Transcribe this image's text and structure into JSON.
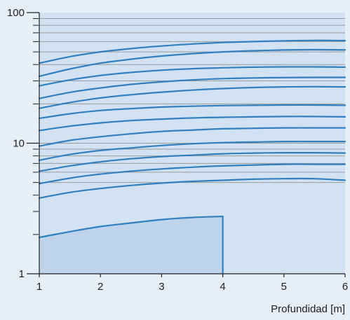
{
  "chart_data": {
    "type": "line",
    "xlabel": "Profundidad [m]",
    "ylabel": "",
    "xlim": [
      1,
      6
    ],
    "ylim": [
      1,
      100
    ],
    "y_scale": "log",
    "x_ticks": [
      {
        "value": 1,
        "label": "1"
      },
      {
        "value": 2,
        "label": "2"
      },
      {
        "value": 3,
        "label": "3"
      },
      {
        "value": 4,
        "label": "4"
      },
      {
        "value": 5,
        "label": "5"
      },
      {
        "value": 6,
        "label": "6"
      }
    ],
    "y_major_ticks": [
      {
        "value": 1,
        "label": "1"
      },
      {
        "value": 10,
        "label": "10"
      },
      {
        "value": 100,
        "label": "100"
      }
    ],
    "y_minor_ticks": [
      2,
      3,
      4,
      5,
      6,
      7,
      8,
      9,
      20,
      30,
      40,
      50,
      60,
      70,
      80,
      90
    ],
    "grid": true,
    "colors": {
      "background": "#e6eef8",
      "plot_fill": "#d3e2f2",
      "region_fill": "#bfd4ea",
      "curve": "#2f7fc1",
      "grid": "#9a9a9a",
      "axis": "#222222"
    },
    "series": [
      {
        "x": [
          1,
          1.5,
          2,
          2.5,
          3,
          3.5,
          4
        ],
        "y": [
          1.9,
          2.1,
          2.3,
          2.45,
          2.6,
          2.7,
          2.75
        ]
      },
      {
        "x": [
          1,
          1.5,
          2,
          2.5,
          3,
          3.5,
          4,
          4.5,
          5,
          5.5,
          6
        ],
        "y": [
          3.8,
          4.2,
          4.5,
          4.75,
          4.95,
          5.1,
          5.2,
          5.3,
          5.35,
          5.35,
          5.2
        ]
      },
      {
        "x": [
          1,
          1.5,
          2,
          2.5,
          3,
          3.5,
          4,
          4.5,
          5,
          5.5,
          6
        ],
        "y": [
          4.9,
          5.4,
          5.8,
          6.1,
          6.35,
          6.55,
          6.7,
          6.8,
          6.9,
          6.9,
          6.9
        ]
      },
      {
        "x": [
          1,
          1.5,
          2,
          2.5,
          3,
          3.5,
          4,
          4.5,
          5,
          5.5,
          6
        ],
        "y": [
          6.1,
          6.7,
          7.2,
          7.6,
          7.9,
          8.1,
          8.3,
          8.4,
          8.45,
          8.45,
          8.4
        ]
      },
      {
        "x": [
          1,
          1.5,
          2,
          2.5,
          3,
          3.5,
          4,
          4.5,
          5,
          5.5,
          6
        ],
        "y": [
          7.4,
          8.2,
          8.8,
          9.2,
          9.6,
          9.9,
          10.1,
          10.2,
          10.3,
          10.3,
          10.3
        ]
      },
      {
        "x": [
          1,
          1.5,
          2,
          2.5,
          3,
          3.5,
          4,
          4.5,
          5,
          5.5,
          6
        ],
        "y": [
          9.5,
          10.5,
          11.2,
          11.8,
          12.3,
          12.6,
          12.9,
          13.0,
          13.1,
          13.1,
          13.1
        ]
      },
      {
        "x": [
          1,
          1.5,
          2,
          2.5,
          3,
          3.5,
          4,
          4.5,
          5,
          5.5,
          6
        ],
        "y": [
          12.5,
          13.5,
          14.3,
          14.9,
          15.3,
          15.6,
          15.8,
          15.9,
          16.0,
          16.0,
          15.9
        ]
      },
      {
        "x": [
          1,
          1.5,
          2,
          2.5,
          3,
          3.5,
          4,
          4.5,
          5,
          5.5,
          6
        ],
        "y": [
          15.5,
          16.8,
          17.8,
          18.4,
          18.9,
          19.2,
          19.4,
          19.5,
          19.6,
          19.6,
          19.5
        ]
      },
      {
        "x": [
          1,
          1.5,
          2,
          2.5,
          3,
          3.5,
          4,
          4.5,
          5,
          5.5,
          6
        ],
        "y": [
          18.5,
          20.5,
          22.2,
          23.5,
          24.6,
          25.5,
          26.2,
          26.7,
          27.0,
          27.1,
          27.0
        ]
      },
      {
        "x": [
          1,
          1.5,
          2,
          2.5,
          3,
          3.5,
          4,
          4.5,
          5,
          5.5,
          6
        ],
        "y": [
          22.0,
          24.5,
          26.5,
          28.2,
          29.5,
          30.5,
          31.2,
          31.6,
          31.8,
          31.9,
          31.9
        ]
      },
      {
        "x": [
          1,
          1.5,
          2,
          2.5,
          3,
          3.5,
          4,
          4.5,
          5,
          5.5,
          6
        ],
        "y": [
          27.5,
          30.5,
          33.0,
          34.8,
          36.2,
          37.2,
          37.8,
          38.2,
          38.4,
          38.4,
          38.2
        ]
      },
      {
        "x": [
          1,
          1.5,
          2,
          2.5,
          3,
          3.5,
          4,
          4.5,
          5,
          5.5,
          6
        ],
        "y": [
          32.5,
          37.0,
          41.0,
          44.0,
          46.5,
          48.5,
          50.0,
          51.0,
          51.7,
          52.0,
          51.8
        ]
      },
      {
        "x": [
          1,
          1.5,
          2,
          2.5,
          3,
          3.5,
          4,
          4.5,
          5,
          5.5,
          6
        ],
        "y": [
          41.0,
          46.0,
          50.0,
          53.0,
          55.5,
          57.5,
          59.0,
          60.0,
          60.8,
          61.2,
          61.0
        ]
      }
    ],
    "boundary": {
      "x": 4,
      "y_min": 1,
      "y_max": 2.75
    }
  }
}
